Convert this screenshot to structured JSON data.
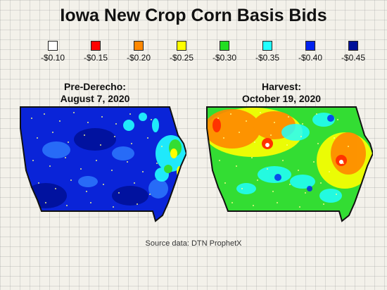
{
  "title": "Iowa New Crop Corn Basis Bids",
  "legend": [
    {
      "label": "-$0.10",
      "color": "#ffffff"
    },
    {
      "label": "-$0.15",
      "color": "#ff0000"
    },
    {
      "label": "-$0.20",
      "color": "#ff8800"
    },
    {
      "label": "-$0.25",
      "color": "#ffff00"
    },
    {
      "label": "-$0.30",
      "color": "#22dd22"
    },
    {
      "label": "-$0.35",
      "color": "#22ffff"
    },
    {
      "label": "-$0.40",
      "color": "#0022ee"
    },
    {
      "label": "-$0.45",
      "color": "#001199"
    }
  ],
  "maps": [
    {
      "title_line1": "Pre-Derecho:",
      "title_line2": "August 7, 2020"
    },
    {
      "title_line1": "Harvest:",
      "title_line2": "October 19, 2020"
    }
  ],
  "source": "Source data: DTN ProphetX"
}
